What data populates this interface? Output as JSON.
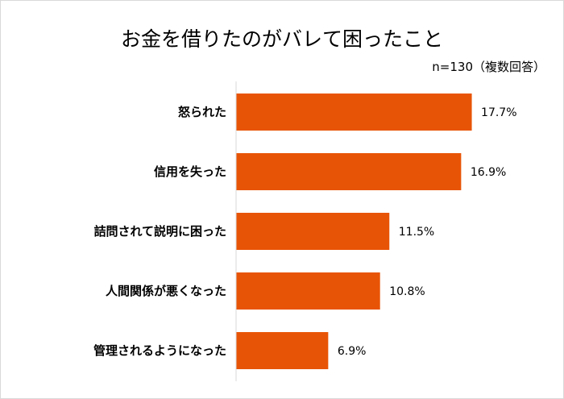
{
  "chart_data": {
    "type": "bar",
    "orientation": "horizontal",
    "title": "お金を借りたのがバレて困ったこと",
    "note": "n=130（複数回答）",
    "categories": [
      "怒られた",
      "信用を失った",
      "詰問されて説明に困った",
      "人間関係が悪くなった",
      "管理されるようになった"
    ],
    "values": [
      17.7,
      16.9,
      11.5,
      10.8,
      6.9
    ],
    "labels": [
      "17.7%",
      "16.9%",
      "11.5%",
      "10.8%",
      "6.9%"
    ],
    "unit": "%",
    "grid": false,
    "color": "#E85405"
  }
}
